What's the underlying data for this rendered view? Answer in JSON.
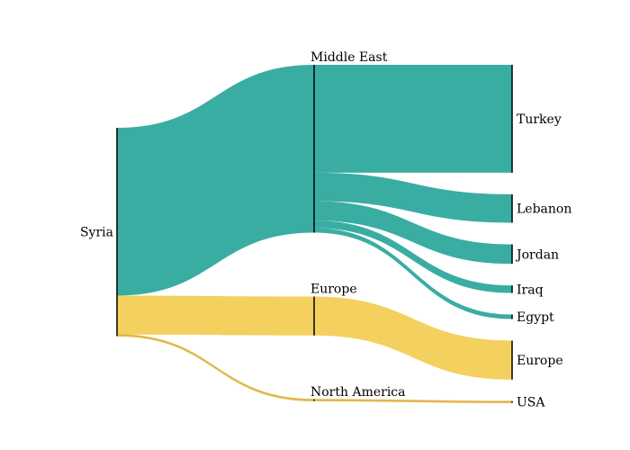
{
  "chart_data": {
    "type": "sankey",
    "title": "",
    "colors": {
      "middle_east": "#3aada2",
      "europe": "#f4d05f",
      "north_america": "#e2b84a"
    },
    "nodes": [
      {
        "id": "syria",
        "label": "Syria",
        "column": 0
      },
      {
        "id": "middle_east",
        "label": "Middle East",
        "column": 1
      },
      {
        "id": "europe_region",
        "label": "Europe",
        "column": 1
      },
      {
        "id": "north_america",
        "label": "North America",
        "column": 1
      },
      {
        "id": "turkey",
        "label": "Turkey",
        "column": 2
      },
      {
        "id": "lebanon",
        "label": "Lebanon",
        "column": 2
      },
      {
        "id": "jordan",
        "label": "Jordan",
        "column": 2
      },
      {
        "id": "iraq",
        "label": "Iraq",
        "column": 2
      },
      {
        "id": "egypt",
        "label": "Egypt",
        "column": 2
      },
      {
        "id": "europe_dest",
        "label": "Europe",
        "column": 2
      },
      {
        "id": "usa",
        "label": "USA",
        "column": 2
      }
    ],
    "links": [
      {
        "source": "syria",
        "target": "middle_east",
        "value": 56,
        "color_key": "middle_east"
      },
      {
        "source": "syria",
        "target": "europe_region",
        "value": 13,
        "color_key": "europe"
      },
      {
        "source": "syria",
        "target": "north_america",
        "value": 0.5,
        "color_key": "north_america"
      },
      {
        "source": "middle_east",
        "target": "turkey",
        "value": 36,
        "color_key": "middle_east"
      },
      {
        "source": "middle_east",
        "target": "lebanon",
        "value": 9.5,
        "color_key": "middle_east"
      },
      {
        "source": "middle_east",
        "target": "jordan",
        "value": 6.5,
        "color_key": "middle_east"
      },
      {
        "source": "middle_east",
        "target": "iraq",
        "value": 2.5,
        "color_key": "middle_east"
      },
      {
        "source": "middle_east",
        "target": "egypt",
        "value": 1.5,
        "color_key": "middle_east"
      },
      {
        "source": "europe_region",
        "target": "europe_dest",
        "value": 13,
        "color_key": "europe"
      },
      {
        "source": "north_america",
        "target": "usa",
        "value": 0.5,
        "color_key": "north_america"
      }
    ]
  }
}
